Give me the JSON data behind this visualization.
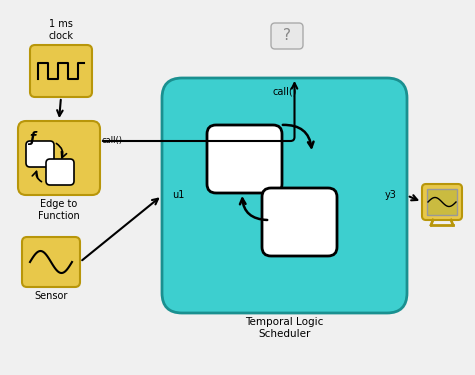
{
  "bg_color": "#f0f0f0",
  "gold_color": "#e8c84a",
  "gold_edge": "#b8960a",
  "teal_color": "#3dcfcf",
  "teal_edge": "#1a9090",
  "question_box_color": "#e8e8e8",
  "question_box_edge": "#aaaaaa",
  "clock_label": "1 ms\nclock",
  "edge_label": "Edge to\nFunction",
  "sensor_label": "Sensor",
  "scheduler_label": "Temporal Logic\nScheduler",
  "call_label": "call()",
  "u1_label": "u1",
  "y3_label": "y3"
}
